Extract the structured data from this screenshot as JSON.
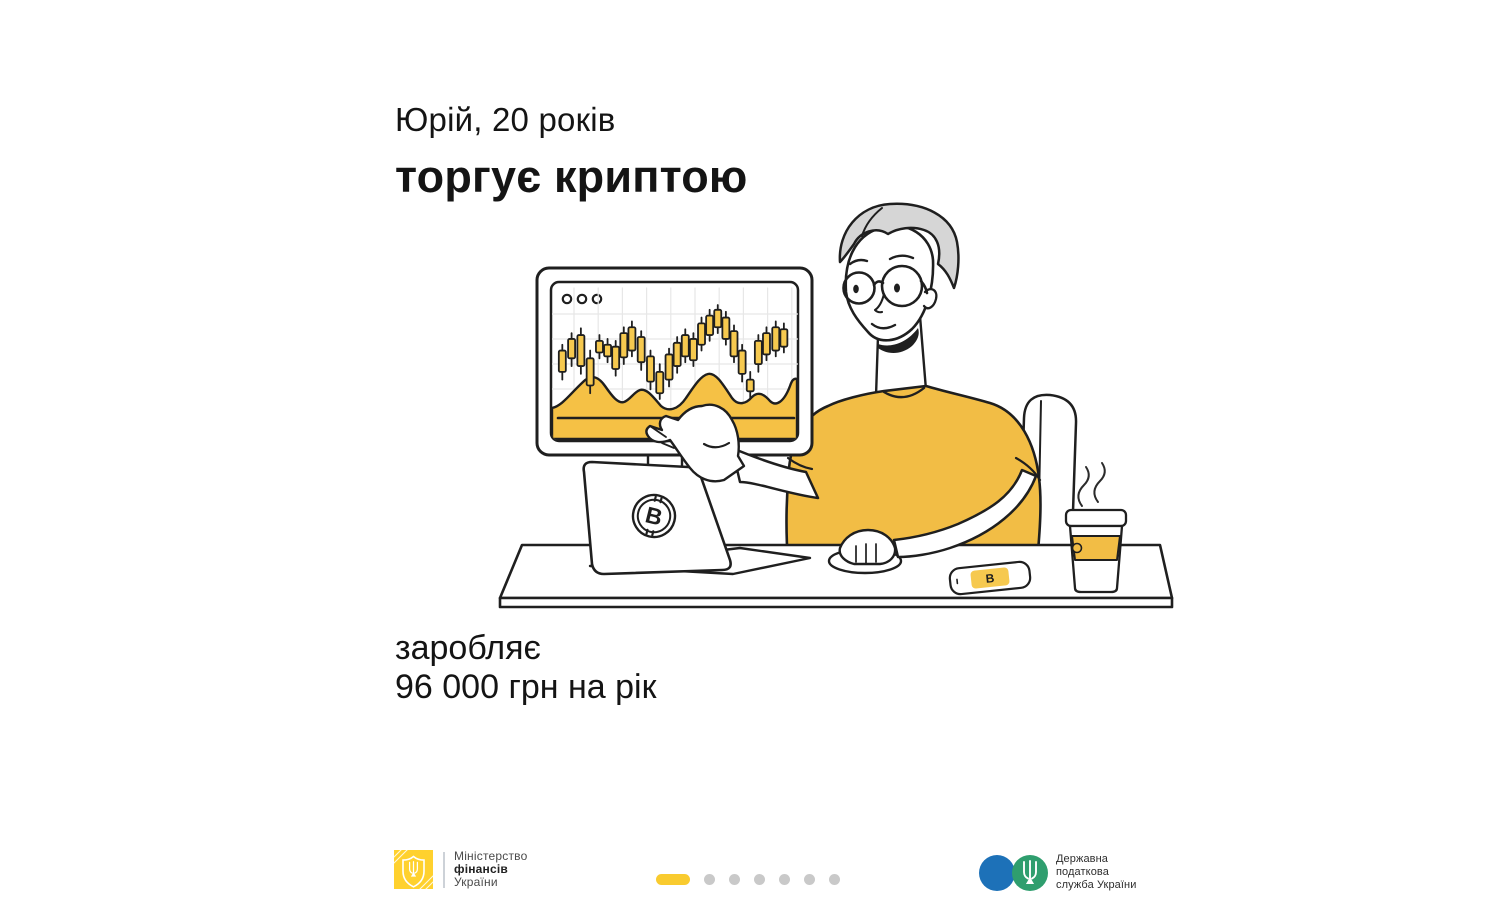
{
  "slide": {
    "background": "#FFFFFF",
    "headline": {
      "line1": "Юрій, 20 років",
      "line2": "торгує криптою"
    },
    "earnings": {
      "line1": "заробляє",
      "line2": "96 000 грн на рік"
    }
  },
  "illustration": {
    "name": "young-man-trading-crypto-at-desk",
    "bitcoin_symbol": "₿",
    "bitcoin_letter": "B",
    "monitor_window_dots": 3,
    "colors": {
      "accent_yellow": "#F2BD45",
      "candle_yellow": "#F6C94F",
      "bright_yellow": "#F9CB2F",
      "outline": "#1F1F1F",
      "hair_gray": "#D6D6D6",
      "grid_gray": "#E7E7E7"
    },
    "chart": {
      "type": "candlestick",
      "note": "decorative trading chart with volume wave on monitor",
      "candles": [
        [
          1,
          30,
          52,
          22,
          58
        ],
        [
          5,
          44,
          64,
          36,
          70
        ],
        [
          9,
          36,
          68,
          28,
          75
        ],
        [
          13,
          16,
          44,
          8,
          52
        ],
        [
          17,
          50,
          62,
          44,
          68
        ],
        [
          20.5,
          46,
          58,
          40,
          64
        ],
        [
          24,
          33,
          56,
          26,
          62
        ],
        [
          27.5,
          45,
          70,
          38,
          76
        ],
        [
          31,
          52,
          76,
          46,
          82
        ],
        [
          35,
          40,
          66,
          32,
          72
        ],
        [
          39,
          20,
          46,
          12,
          52
        ],
        [
          43,
          8,
          30,
          2,
          38
        ],
        [
          47,
          22,
          48,
          15,
          54
        ],
        [
          50.5,
          36,
          60,
          29,
          66
        ],
        [
          54,
          46,
          68,
          40,
          74
        ],
        [
          57.5,
          42,
          64,
          36,
          70
        ],
        [
          61,
          58,
          80,
          52,
          86
        ],
        [
          64.5,
          68,
          88,
          62,
          94
        ],
        [
          68,
          76,
          94,
          70,
          99
        ],
        [
          71.5,
          64,
          86,
          58,
          92
        ],
        [
          75,
          46,
          72,
          40,
          78
        ],
        [
          78.5,
          28,
          52,
          20,
          58
        ],
        [
          82,
          10,
          22,
          3,
          30
        ],
        [
          85.5,
          38,
          62,
          30,
          68
        ],
        [
          89,
          48,
          70,
          42,
          76
        ],
        [
          93,
          52,
          76,
          46,
          82
        ],
        [
          96.5,
          56,
          74,
          50,
          80
        ]
      ]
    }
  },
  "footer": {
    "minfin": {
      "line1": "Міністерство",
      "line2": "фінансів",
      "line3": "України"
    },
    "pagination": {
      "total": 7,
      "active_index": 0,
      "active_color": "#F9CB2F",
      "dot_color": "#C9C9C9"
    },
    "tax_service": {
      "line1": "Державна",
      "line2": "податкова",
      "line3": "служба України",
      "blue": "#1D71B8",
      "green": "#2F9E6E"
    }
  }
}
